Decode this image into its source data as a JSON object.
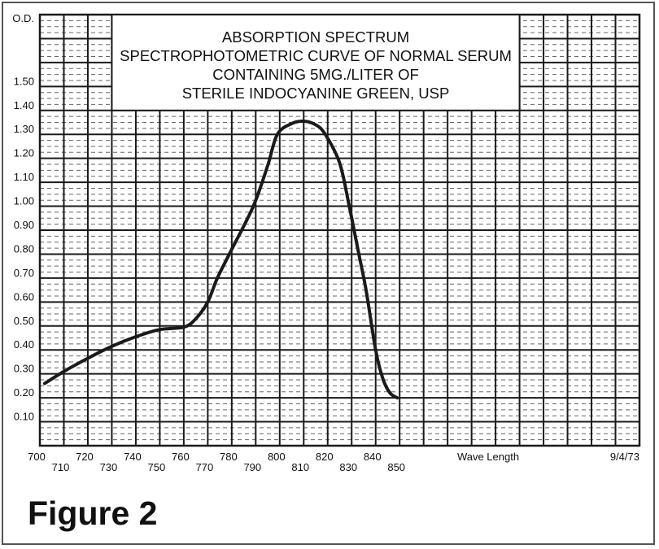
{
  "figure_label": "Figure 2",
  "chart_data": {
    "type": "line",
    "title": [
      "ABSORPTION SPECTRUM",
      "SPECTROPHOTOMETRIC CURVE OF NORMAL SERUM",
      "CONTAINING 5MG./LITER OF",
      "STERILE INDOCYANINE GREEN, USP"
    ],
    "xlabel": "Wave Length",
    "ylabel": "O.D.",
    "date": "9/4/73",
    "xlim": [
      700,
      950
    ],
    "ylim": [
      0,
      1.8
    ],
    "grid": true,
    "x_ticks": [
      700,
      710,
      720,
      730,
      740,
      750,
      760,
      770,
      780,
      790,
      800,
      810,
      820,
      830,
      840,
      850
    ],
    "x_tick_labels": [
      "700",
      "710",
      "720",
      "730",
      "740",
      "750",
      "760",
      "770",
      "780",
      "790",
      "800",
      "810",
      "820",
      "830",
      "840",
      "850"
    ],
    "y_ticks": [
      0.1,
      0.2,
      0.3,
      0.4,
      0.5,
      0.6,
      0.7,
      0.8,
      0.9,
      1.0,
      1.1,
      1.2,
      1.3,
      1.4,
      1.5
    ],
    "y_tick_labels": [
      "0.10",
      "0.20",
      "0.30",
      "0.40",
      "0.50",
      "0.60",
      "0.70",
      "0.80",
      "0.90",
      "1.00",
      "1.10",
      "1.20",
      "1.30",
      "1.40",
      "1.50"
    ],
    "series": [
      {
        "color": "#1a1a1a",
        "x": [
          702,
          710,
          720,
          730,
          740,
          750,
          760,
          765,
          770,
          774,
          780,
          789,
          795,
          799,
          805,
          810,
          815,
          819,
          825,
          829,
          833,
          836,
          840,
          843,
          846,
          849
        ],
        "y": [
          0.26,
          0.31,
          0.365,
          0.415,
          0.455,
          0.485,
          0.495,
          0.53,
          0.6,
          0.7,
          0.82,
          1.0,
          1.17,
          1.3,
          1.345,
          1.355,
          1.34,
          1.3,
          1.18,
          1.0,
          0.8,
          0.65,
          0.4,
          0.28,
          0.22,
          0.2
        ]
      }
    ]
  }
}
